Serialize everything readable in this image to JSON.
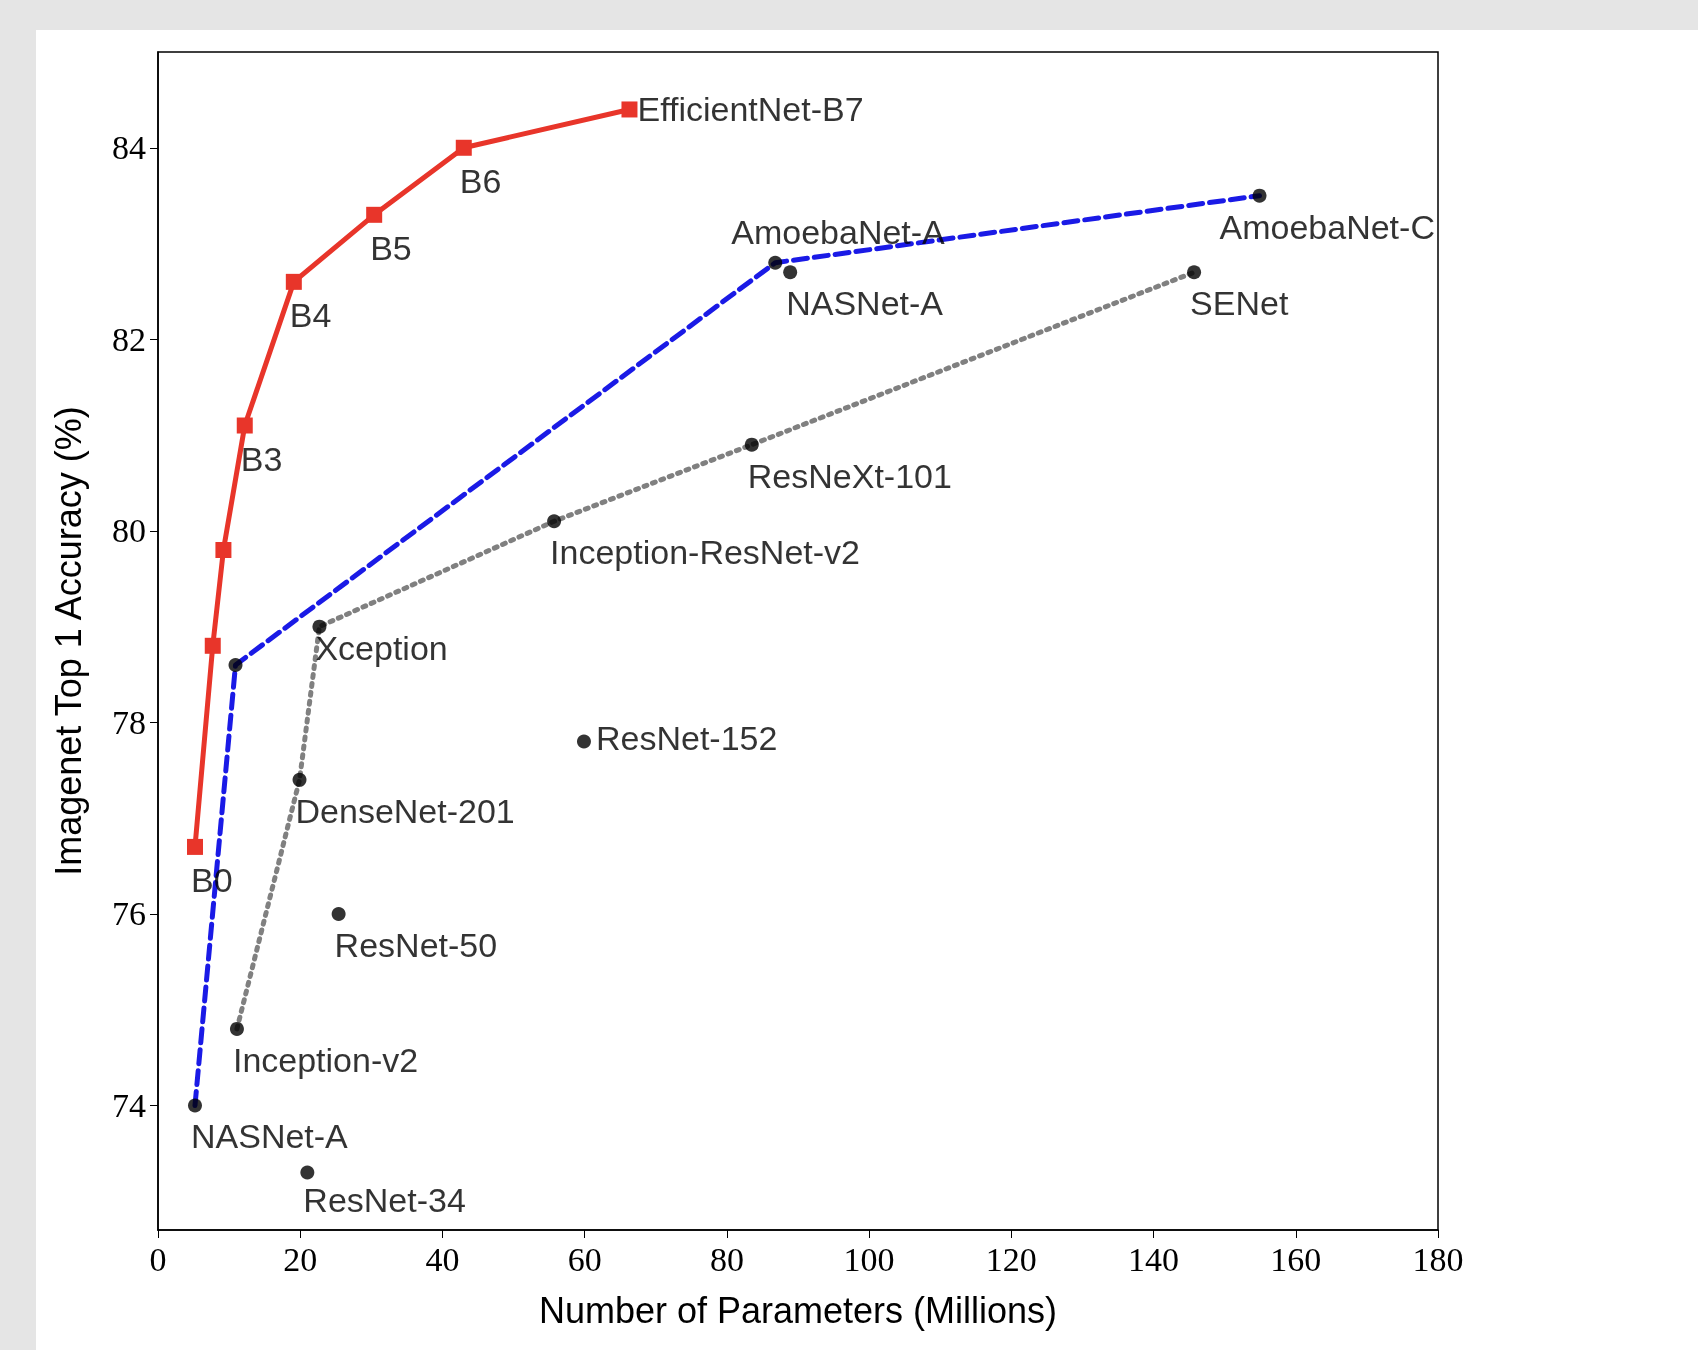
{
  "chart_data": {
    "type": "line",
    "xlabel": "Number of Parameters (Millions)",
    "ylabel": "Imagenet Top 1 Accuracy (%)",
    "xlim": [
      0,
      180
    ],
    "xticks": [
      0,
      20,
      40,
      60,
      80,
      100,
      120,
      140,
      160,
      180
    ],
    "ylim": [
      72.7,
      85
    ],
    "yticks": [
      74,
      76,
      78,
      80,
      82,
      84
    ],
    "grid": false,
    "series": [
      {
        "color": "#e8352a",
        "marker": "square",
        "line_style": "solid",
        "x": [
          5.2,
          7.7,
          9.2,
          12.2,
          19.1,
          30.4,
          43,
          66.3
        ],
        "values": [
          76.7,
          78.8,
          79.8,
          81.1,
          82.6,
          83.3,
          84.0,
          84.4
        ]
      },
      {
        "color": "#1a1ae6",
        "marker": "none",
        "line_style": "dashed",
        "x": [
          5.2,
          10.9,
          86.8,
          154.9
        ],
        "values": [
          74.0,
          78.6,
          82.8,
          83.5
        ]
      },
      {
        "color": "#808080",
        "marker": "none",
        "line_style": "dotted",
        "x": [
          11.1,
          19.9,
          22.7,
          55.7,
          83.5,
          145.7
        ],
        "values": [
          74.8,
          77.4,
          79.0,
          80.1,
          80.9,
          82.7
        ]
      },
      {
        "type": "scatter",
        "color": "#000000",
        "marker": "circle",
        "x": [
          5.2,
          10.9,
          86.8,
          154.9,
          11.1,
          19.9,
          22.7,
          55.7,
          83.5,
          145.7,
          88.9,
          59.9,
          25.4,
          21.0
        ],
        "values": [
          74.0,
          78.6,
          82.8,
          83.5,
          74.8,
          77.4,
          79.0,
          80.1,
          80.9,
          82.7,
          82.7,
          77.8,
          76.0,
          73.3
        ]
      }
    ],
    "annotations": [
      {
        "text": "EfficientNet-B7",
        "x": 66.3,
        "y": 84.4
      },
      {
        "text": "B6",
        "x": 43,
        "y": 84.0
      },
      {
        "text": "B5",
        "x": 30.4,
        "y": 83.3
      },
      {
        "text": "B4",
        "x": 19.1,
        "y": 82.6
      },
      {
        "text": "B3",
        "x": 12.2,
        "y": 81.1
      },
      {
        "text": "B0",
        "x": 5.2,
        "y": 76.7
      },
      {
        "text": "AmoebaNet-A",
        "x": 86.8,
        "y": 82.8
      },
      {
        "text": "AmoebaNet-C",
        "x": 154.9,
        "y": 83.5
      },
      {
        "text": "NASNet-A",
        "x": 88.9,
        "y": 82.7
      },
      {
        "text": "SENet",
        "x": 145.7,
        "y": 82.7
      },
      {
        "text": "ResNeXt-101",
        "x": 83.5,
        "y": 80.9
      },
      {
        "text": "Inception-ResNet-v2",
        "x": 55.7,
        "y": 80.1
      },
      {
        "text": "Xception",
        "x": 22.7,
        "y": 79.0
      },
      {
        "text": "ResNet-152",
        "x": 59.9,
        "y": 77.8
      },
      {
        "text": "DenseNet-201",
        "x": 19.9,
        "y": 77.4
      },
      {
        "text": "ResNet-50",
        "x": 25.4,
        "y": 76.0
      },
      {
        "text": "Inception-v2",
        "x": 11.1,
        "y": 74.8
      },
      {
        "text": "NASNet-A",
        "x": 5.2,
        "y": 74.0
      },
      {
        "text": "ResNet-34",
        "x": 21.0,
        "y": 73.3
      }
    ]
  }
}
